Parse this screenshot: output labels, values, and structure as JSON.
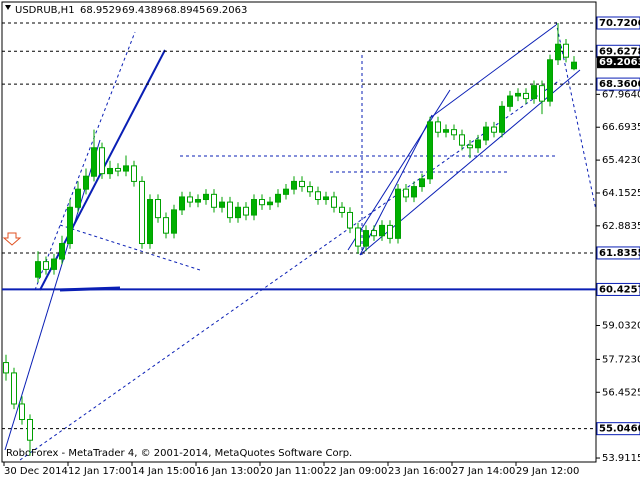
{
  "chart_data": {
    "type": "candlestick",
    "symbol": "USDRUB,H1",
    "footer": "RoboForex - MetaTrader 4, © 2001-2014, MetaQuotes Software Corp.",
    "up_color": "#00b000",
    "down_color": "#ffffff",
    "wick_color": "#00a000",
    "level_color": "#0a1fb5",
    "ylim": [
      53.758,
      71.532
    ],
    "yticks": [
      {
        "value": 67.964,
        "label": "67.9640"
      },
      66.6935,
      {
        "value": 65.423,
        "label": "65.4230"
      },
      64.1525,
      62.8835,
      {
        "value": 59.032,
        "label": "59.0320"
      },
      {
        "value": 57.723,
        "label": "57.7230"
      },
      56.4525,
      53.9115
    ],
    "x_labels": [
      "30 Dec 2014",
      "12 Jan 17:00",
      "14 Jan 15:00",
      "16 Jan 13:00",
      "20 Jan 11:00",
      "22 Jan 09:00",
      "23 Jan 16:00",
      "27 Jan 14:00",
      "29 Jan 12:00"
    ],
    "levels": [
      {
        "value": 70.7206,
        "style": "dashed"
      },
      {
        "value": 69.6278,
        "style": "dashed"
      },
      {
        "value": {
          "value": 68.36,
          "label": "68.3600"
        },
        "style": "dashed"
      },
      {
        "value": 61.8355,
        "style": "dashed"
      },
      {
        "value": 60.4257,
        "style": "solid"
      },
      {
        "value": {
          "value": 55.046,
          "label": "55.0460"
        },
        "style": "dashed"
      }
    ],
    "candles": [
      [
        57.6,
        57.9,
        56.9,
        57.2
      ],
      [
        57.2,
        57.4,
        55.8,
        56.0
      ],
      [
        56.0,
        56.3,
        55.2,
        55.4
      ],
      [
        55.4,
        55.6,
        54.0,
        54.6
      ],
      [
        60.9,
        61.9,
        60.7,
        61.5
      ],
      [
        61.5,
        61.7,
        61.0,
        61.2
      ],
      [
        61.2,
        61.8,
        61.0,
        61.6
      ],
      [
        61.6,
        62.5,
        61.4,
        62.2
      ],
      [
        62.2,
        63.9,
        62.0,
        63.6
      ],
      [
        63.6,
        64.6,
        63.4,
        64.3
      ],
      [
        64.3,
        65.1,
        64.1,
        64.8
      ],
      [
        64.8,
        66.6,
        64.6,
        65.9
      ],
      [
        65.9,
        66.1,
        64.7,
        64.9
      ],
      [
        64.9,
        65.4,
        64.7,
        65.1
      ],
      [
        65.1,
        65.3,
        64.8,
        65.0
      ],
      [
        65.0,
        65.6,
        64.8,
        65.2
      ],
      [
        65.2,
        65.4,
        64.4,
        64.6
      ],
      [
        64.6,
        64.8,
        62.0,
        62.2
      ],
      [
        62.2,
        64.1,
        62.0,
        63.9
      ],
      [
        63.9,
        64.1,
        63.0,
        63.2
      ],
      [
        63.2,
        63.4,
        62.4,
        62.6
      ],
      [
        62.6,
        63.7,
        62.4,
        63.5
      ],
      [
        63.5,
        64.2,
        63.3,
        64.0
      ],
      [
        64.0,
        64.2,
        63.6,
        63.8
      ],
      [
        63.8,
        64.1,
        63.6,
        63.9
      ],
      [
        63.9,
        64.3,
        63.7,
        64.1
      ],
      [
        64.1,
        64.3,
        63.4,
        63.6
      ],
      [
        63.6,
        64.0,
        63.4,
        63.8
      ],
      [
        63.8,
        64.0,
        63.0,
        63.2
      ],
      [
        63.2,
        63.8,
        63.0,
        63.6
      ],
      [
        63.6,
        63.8,
        63.1,
        63.3
      ],
      [
        63.3,
        64.1,
        63.1,
        63.9
      ],
      [
        63.9,
        64.1,
        63.5,
        63.7
      ],
      [
        63.7,
        64.0,
        63.5,
        63.8
      ],
      [
        63.8,
        64.3,
        63.6,
        64.1
      ],
      [
        64.1,
        64.5,
        63.9,
        64.3
      ],
      [
        64.3,
        64.8,
        64.1,
        64.6
      ],
      [
        64.6,
        64.8,
        64.2,
        64.4
      ],
      [
        64.4,
        64.6,
        64.0,
        64.2
      ],
      [
        64.2,
        64.4,
        63.7,
        63.9
      ],
      [
        63.9,
        64.2,
        63.7,
        64.0
      ],
      [
        64.0,
        64.2,
        63.4,
        63.6
      ],
      [
        63.6,
        63.8,
        63.2,
        63.4
      ],
      [
        63.4,
        63.6,
        62.6,
        62.8
      ],
      [
        62.8,
        63.0,
        61.8,
        62.1
      ],
      [
        62.1,
        62.9,
        61.9,
        62.7
      ],
      [
        62.7,
        62.9,
        62.3,
        62.5
      ],
      [
        62.5,
        63.1,
        62.3,
        62.9
      ],
      [
        62.9,
        63.1,
        62.2,
        62.4
      ],
      [
        62.4,
        64.5,
        62.2,
        64.3
      ],
      [
        64.3,
        64.5,
        63.8,
        64.0
      ],
      [
        64.0,
        64.6,
        63.8,
        64.4
      ],
      [
        64.4,
        64.9,
        64.2,
        64.7
      ],
      [
        64.7,
        67.1,
        64.5,
        66.9
      ],
      [
        66.9,
        67.1,
        66.3,
        66.5
      ],
      [
        66.5,
        66.8,
        66.3,
        66.6
      ],
      [
        66.6,
        66.8,
        66.2,
        66.4
      ],
      [
        66.4,
        66.6,
        65.8,
        66.0
      ],
      [
        66.0,
        66.2,
        65.5,
        65.9
      ],
      [
        65.9,
        66.4,
        65.7,
        66.2
      ],
      [
        66.2,
        66.9,
        66.0,
        66.7
      ],
      [
        66.7,
        66.9,
        66.3,
        66.5
      ],
      [
        66.5,
        67.7,
        66.3,
        67.5
      ],
      [
        67.5,
        68.1,
        67.3,
        67.9
      ],
      [
        67.9,
        68.2,
        67.7,
        68.0
      ],
      [
        68.0,
        68.2,
        67.6,
        67.8
      ],
      [
        67.8,
        68.5,
        67.6,
        68.3
      ],
      [
        68.3,
        68.5,
        67.2,
        67.7
      ],
      [
        67.7,
        69.5,
        67.5,
        69.3
      ],
      [
        69.3,
        70.7206,
        69.1,
        69.9
      ],
      [
        69.9,
        70.1,
        69.2,
        69.4
      ],
      [
        68.9529,
        69.4389,
        68.8945,
        69.2063
      ]
    ]
  }
}
